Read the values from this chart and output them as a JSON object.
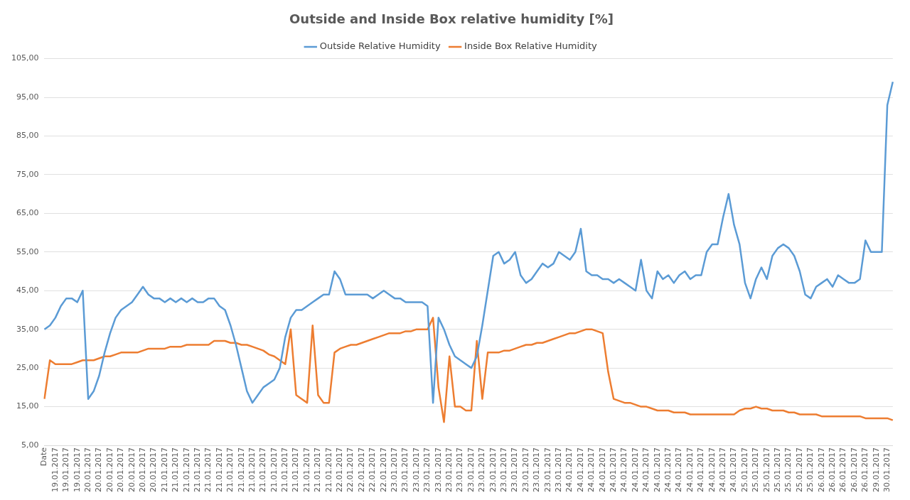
{
  "chart_data": {
    "type": "line",
    "title": "Outside and Inside Box relative humidity [%]",
    "categories": [
      "Date",
      null,
      "19.01.2017",
      null,
      "19.01.2017",
      null,
      "19.01.2017",
      null,
      "20.01.2017",
      null,
      "20.01.2017",
      null,
      "20.01.2017",
      null,
      "20.01.2017",
      null,
      "20.01.2017",
      null,
      "20.01.2017",
      null,
      "20.01.2017",
      null,
      "21.01.2017",
      null,
      "21.01.2017",
      null,
      "21.01.2017",
      null,
      "21.01.2017",
      null,
      "21.01.2017",
      null,
      "21.01.2017",
      null,
      "21.01.2017",
      null,
      "21.01.2017",
      null,
      "21.01.2017",
      null,
      "21.01.2017",
      null,
      "21.01.2017",
      null,
      "21.01.2017",
      null,
      "21.01.2017",
      null,
      "21.01.2017",
      null,
      "21.01.2017",
      null,
      "21.01.2017",
      null,
      "22.01.2017",
      null,
      "22.01.2017",
      null,
      "22.01.2017",
      null,
      "22.01.2017",
      null,
      "22.01.2017",
      null,
      "23.01.2017",
      null,
      "23.01.2017",
      null,
      "23.01.2017",
      null,
      "23.01.2017",
      null,
      "23.01.2017",
      null,
      "23.01.2017",
      null,
      "23.01.2017",
      null,
      "23.01.2017",
      null,
      "23.01.2017",
      null,
      "23.01.2017",
      null,
      "23.01.2017",
      null,
      "23.01.2017",
      null,
      "23.01.2017",
      null,
      "23.01.2017",
      null,
      "23.01.2017",
      null,
      "23.01.2017",
      null,
      "24.01.2017",
      null,
      "24.01.2017",
      null,
      "24.01.2017",
      null,
      "24.01.2017",
      null,
      "24.01.2017",
      null,
      "24.01.2017",
      null,
      "24.01.2017",
      null,
      "24.01.2017",
      null,
      "24.01.2017",
      null,
      "24.01.2017",
      null,
      "24.01.2017",
      null,
      "24.01.2017",
      null,
      "24.01.2017",
      null,
      "24.01.2017",
      null,
      "24.01.2017",
      null,
      "24.01.2017",
      null,
      "25.01.2017",
      null,
      "25.01.2017",
      null,
      "25.01.2017",
      null,
      "25.01.2017",
      null,
      "25.01.2017",
      null,
      "25.01.2017",
      null,
      "25.01.2017",
      null,
      "26.01.2017",
      null,
      "26.01.2017",
      null,
      "26.01.2017",
      null,
      "26.01.2017",
      null,
      "26.01.2017",
      null,
      "29.01.2017",
      null,
      "30.01.2017",
      null
    ],
    "series": [
      {
        "name": "Outside Relative Humidity",
        "color": "#5b9bd5",
        "values": [
          35,
          36,
          38,
          41,
          43,
          43,
          42,
          45,
          17,
          19,
          23,
          29,
          34,
          38,
          40,
          41,
          42,
          44,
          46,
          44,
          43,
          43,
          42,
          43,
          42,
          43,
          42,
          43,
          42,
          42,
          43,
          43,
          41,
          40,
          36,
          31,
          25,
          19,
          16,
          18,
          20,
          21,
          22,
          25,
          33,
          38,
          40,
          40,
          41,
          42,
          43,
          44,
          44,
          50,
          48,
          44,
          44,
          44,
          44,
          44,
          43,
          44,
          45,
          44,
          43,
          43,
          42,
          42,
          42,
          42,
          41,
          16,
          38,
          35,
          31,
          28,
          27,
          26,
          25,
          28,
          36,
          45,
          54,
          55,
          52,
          53,
          55,
          49,
          47,
          48,
          50,
          52,
          51,
          52,
          55,
          54,
          53,
          55,
          61,
          50,
          49,
          49,
          48,
          48,
          47,
          48,
          47,
          46,
          45,
          53,
          45,
          43,
          50,
          48,
          49,
          47,
          49,
          50,
          48,
          49,
          49,
          55,
          57,
          57,
          64,
          70,
          62,
          57,
          47,
          43,
          48,
          51,
          48,
          54,
          56,
          57,
          56,
          54,
          50,
          44,
          43,
          46,
          47,
          48,
          46,
          49,
          48,
          47,
          47,
          48,
          58,
          55,
          55,
          55,
          93,
          99
        ]
      },
      {
        "name": "Inside Box Relative Humidity",
        "color": "#ed7d31",
        "values": [
          17,
          27,
          26,
          26,
          26,
          26,
          26.5,
          27,
          27,
          27,
          27.5,
          28,
          28,
          28.5,
          29,
          29,
          29,
          29,
          29.5,
          30,
          30,
          30,
          30,
          30.5,
          30.5,
          30.5,
          31,
          31,
          31,
          31,
          31,
          32,
          32,
          32,
          31.5,
          31.5,
          31,
          31,
          30.5,
          30,
          29.5,
          28.5,
          28,
          27,
          26,
          35,
          18,
          17,
          16,
          36,
          18,
          16,
          16,
          29,
          30,
          30.5,
          31,
          31,
          31.5,
          32,
          32.5,
          33,
          33.5,
          34,
          34,
          34,
          34.5,
          34.5,
          35,
          35,
          35,
          38,
          20,
          11,
          28,
          15,
          15,
          14,
          14,
          32,
          17,
          29,
          29,
          29,
          29.5,
          29.5,
          30,
          30.5,
          31,
          31,
          31.5,
          31.5,
          32,
          32.5,
          33,
          33.5,
          34,
          34,
          34.5,
          35,
          35,
          34.5,
          34,
          24,
          17,
          16.5,
          16,
          16,
          15.5,
          15,
          15,
          14.5,
          14,
          14,
          14,
          13.5,
          13.5,
          13.5,
          13,
          13,
          13,
          13,
          13,
          13,
          13,
          13,
          13,
          14,
          14.5,
          14.5,
          15,
          14.5,
          14.5,
          14,
          14,
          14,
          13.5,
          13.5,
          13,
          13,
          13,
          13,
          12.5,
          12.5,
          12.5,
          12.5,
          12.5,
          12.5,
          12.5,
          12.5,
          12,
          12,
          12,
          12,
          12,
          11.5
        ]
      }
    ],
    "ylim": [
      5,
      105
    ],
    "yticks": [
      {
        "value": 5,
        "label": "5,00"
      },
      {
        "value": 15,
        "label": "15,00"
      },
      {
        "value": 25,
        "label": "25,00"
      },
      {
        "value": 35,
        "label": "35,00"
      },
      {
        "value": 45,
        "label": "45,00"
      },
      {
        "value": 55,
        "label": "55,00"
      },
      {
        "value": 65,
        "label": "65,00"
      },
      {
        "value": 75,
        "label": "75,00"
      },
      {
        "value": 85,
        "label": "85,00"
      },
      {
        "value": 95,
        "label": "95,00"
      },
      {
        "value": 105,
        "label": "105,00"
      }
    ],
    "grid": "y",
    "legend": "top",
    "marker": "none",
    "line_style": "solid"
  }
}
